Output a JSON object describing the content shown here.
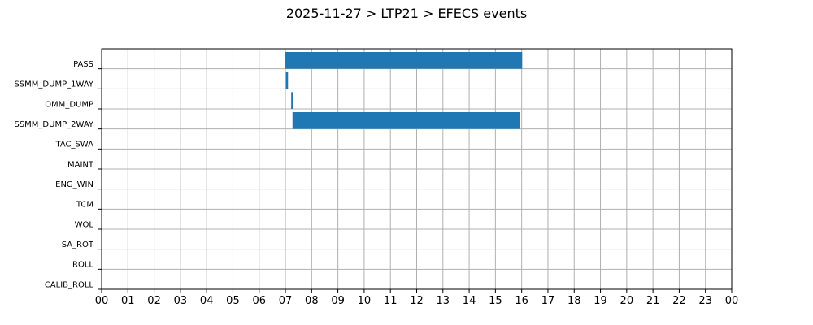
{
  "chart_data": {
    "type": "bar",
    "orientation": "horizontal",
    "title": "2025-11-27 > LTP21 > EFECS events",
    "xlabel": "",
    "ylabel": "",
    "xlim": [
      0,
      24
    ],
    "x_tick_labels": [
      "00",
      "01",
      "02",
      "03",
      "04",
      "05",
      "06",
      "07",
      "08",
      "09",
      "10",
      "11",
      "12",
      "13",
      "14",
      "15",
      "16",
      "17",
      "18",
      "19",
      "20",
      "21",
      "22",
      "23",
      "00"
    ],
    "categories": [
      "PASS",
      "SSMM_DUMP_1WAY",
      "OMM_DUMP",
      "SSMM_DUMP_2WAY",
      "TAC_SWA",
      "MAINT",
      "ENG_WIN",
      "TCM",
      "WOL",
      "SA_ROT",
      "ROLL",
      "CALIB_ROLL"
    ],
    "events": [
      {
        "category": "PASS",
        "start": 7.0,
        "end": 16.02
      },
      {
        "category": "SSMM_DUMP_1WAY",
        "start": 7.02,
        "end": 7.1
      },
      {
        "category": "OMM_DUMP",
        "start": 7.22,
        "end": 7.28
      },
      {
        "category": "SSMM_DUMP_2WAY",
        "start": 7.27,
        "end": 15.93
      }
    ],
    "grid": true,
    "bar_color": "#1f77b4"
  }
}
